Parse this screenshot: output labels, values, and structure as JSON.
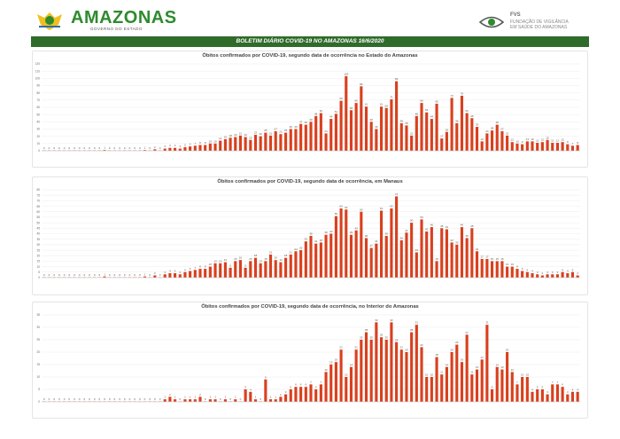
{
  "header": {
    "brand": "AMAZONAS",
    "brand_sub": "GOVERNO DO ESTADO",
    "fvs_title": "FVS",
    "fvs_sub1": "FUNDAÇÃO DE VIGILÂNCIA",
    "fvs_sub2": "EM SAÚDE DO AMAZONAS",
    "colors": {
      "brand": "#2e8b2e",
      "banner": "#2f6b2a",
      "bar": "#d9401e"
    }
  },
  "banner_title": "BOLETIM DIÁRIO COVID-19 NO AMAZONAS 16/6/2020",
  "chart_data": [
    {
      "type": "bar",
      "title": "Óbitos confirmados por COVID-19, segundo data de ocorrência no Estado do Amazonas",
      "ylim": [
        0,
        120
      ],
      "yticks": [
        0,
        10,
        20,
        30,
        40,
        50,
        60,
        70,
        80,
        90,
        100,
        110,
        120
      ],
      "values": [
        0,
        0,
        0,
        0,
        0,
        0,
        0,
        0,
        0,
        0,
        0,
        0,
        1,
        0,
        0,
        0,
        0,
        0,
        0,
        0,
        1,
        0,
        2,
        0,
        3,
        4,
        4,
        3,
        5,
        6,
        7,
        8,
        8,
        10,
        10,
        14,
        16,
        18,
        19,
        21,
        19,
        15,
        22,
        20,
        25,
        21,
        27,
        23,
        25,
        30,
        30,
        37,
        36,
        40,
        48,
        52,
        24,
        44,
        51,
        69,
        103,
        56,
        66,
        89,
        61,
        40,
        30,
        61,
        59,
        71,
        96,
        38,
        35,
        21,
        48,
        66,
        53,
        44,
        65,
        17,
        26,
        73,
        38,
        76,
        52,
        45,
        33,
        13,
        24,
        28,
        36,
        27,
        21,
        12,
        10,
        9,
        13,
        13,
        11,
        12,
        15,
        11,
        11,
        12,
        9,
        7,
        8
      ],
      "data_labels_shown": true
    },
    {
      "type": "bar",
      "title": "Óbitos confirmados por COVID-19, segundo data de ocorrência, em Manaus",
      "ylim": [
        0,
        80
      ],
      "yticks": [
        0,
        5,
        10,
        15,
        20,
        25,
        30,
        35,
        40,
        45,
        50,
        55,
        60,
        65,
        70,
        75,
        80
      ],
      "values": [
        0,
        0,
        0,
        0,
        0,
        0,
        0,
        0,
        0,
        0,
        0,
        0,
        1,
        0,
        0,
        0,
        0,
        0,
        0,
        0,
        1,
        0,
        2,
        0,
        3,
        4,
        4,
        3,
        5,
        6,
        7,
        8,
        8,
        10,
        13,
        13,
        14,
        9,
        15,
        16,
        9,
        15,
        18,
        13,
        15,
        21,
        16,
        14,
        18,
        21,
        24,
        25,
        33,
        38,
        31,
        32,
        39,
        40,
        56,
        63,
        62,
        39,
        43,
        60,
        36,
        27,
        31,
        61,
        38,
        63,
        74,
        34,
        41,
        50,
        23,
        53,
        42,
        46,
        15,
        45,
        44,
        32,
        30,
        46,
        36,
        45,
        24,
        17,
        17,
        15,
        15,
        15,
        10,
        10,
        8,
        6,
        5,
        4,
        3,
        2,
        3,
        3,
        3,
        5,
        4,
        5,
        2
      ]
    },
    {
      "type": "bar",
      "title": "Óbitos  confirmados por COVID-19, segundo data de ocorrência, no Interior do Amazonas",
      "ylim": [
        0,
        35
      ],
      "yticks": [
        0,
        5,
        10,
        15,
        20,
        25,
        30,
        35
      ],
      "values": [
        0,
        0,
        0,
        0,
        0,
        0,
        0,
        0,
        0,
        0,
        0,
        0,
        0,
        0,
        0,
        0,
        0,
        0,
        0,
        0,
        0,
        0,
        0,
        0,
        1,
        2,
        1,
        0,
        1,
        1,
        1,
        2,
        0,
        1,
        1,
        0,
        1,
        0,
        1,
        0,
        5,
        4,
        1,
        0,
        9,
        1,
        1,
        2,
        3,
        5,
        6,
        6,
        6,
        7,
        5,
        7,
        12,
        15,
        16,
        21,
        10,
        14,
        21,
        25,
        28,
        25,
        32,
        26,
        25,
        32,
        24,
        21,
        20,
        28,
        31,
        22,
        10,
        10,
        18,
        11,
        14,
        20,
        23,
        16,
        27,
        11,
        13,
        17,
        31,
        5,
        14,
        13,
        20,
        12,
        7,
        10,
        10,
        4,
        5,
        5,
        3,
        7,
        7,
        6,
        3,
        4,
        4
      ]
    }
  ]
}
